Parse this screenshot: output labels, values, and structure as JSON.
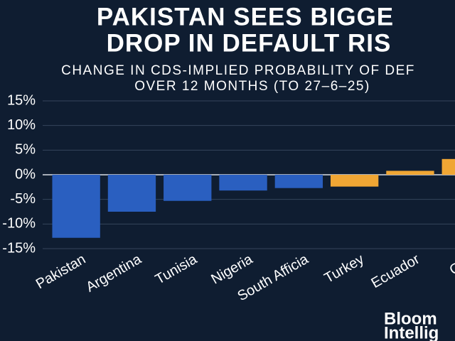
{
  "chart_data": {
    "type": "bar",
    "title": [
      "PAKISTAN SEES BIGGE",
      "DROP IN DEFAULT RIS"
    ],
    "subtitle": [
      "CHANGE IN CDS-IMPLIED PROBABILITY OF DEF",
      "OVER 12 MONTHS (TO 27–6–25)"
    ],
    "categories": [
      "Pakistan",
      "Argentina",
      "Tunisia",
      "Nigeria",
      "South Afficia",
      "Turkey",
      "Ecuador",
      "Gab"
    ],
    "values": [
      -12.8,
      -7.5,
      -5.3,
      -3.2,
      -2.7,
      -2.4,
      0.8,
      3.2
    ],
    "colors": [
      "#2a5fc0",
      "#2a5fc0",
      "#2a5fc0",
      "#2a5fc0",
      "#2a5fc0",
      "#f0a634",
      "#f0a634",
      "#f0a634"
    ],
    "ylim": [
      -15,
      15
    ],
    "yticks": [
      {
        "value": -15,
        "label": "-15%"
      },
      {
        "value": -10,
        "label": "-10%"
      },
      {
        "value": -5,
        "label": "-5%"
      },
      {
        "value": 0,
        "label": "0%"
      },
      {
        "value": 5,
        "label": "5%"
      },
      {
        "value": 10,
        "label": "10%"
      },
      {
        "value": 15,
        "label": "15%"
      }
    ],
    "grid": true,
    "source": [
      "Bloom",
      "Intellig"
    ]
  }
}
